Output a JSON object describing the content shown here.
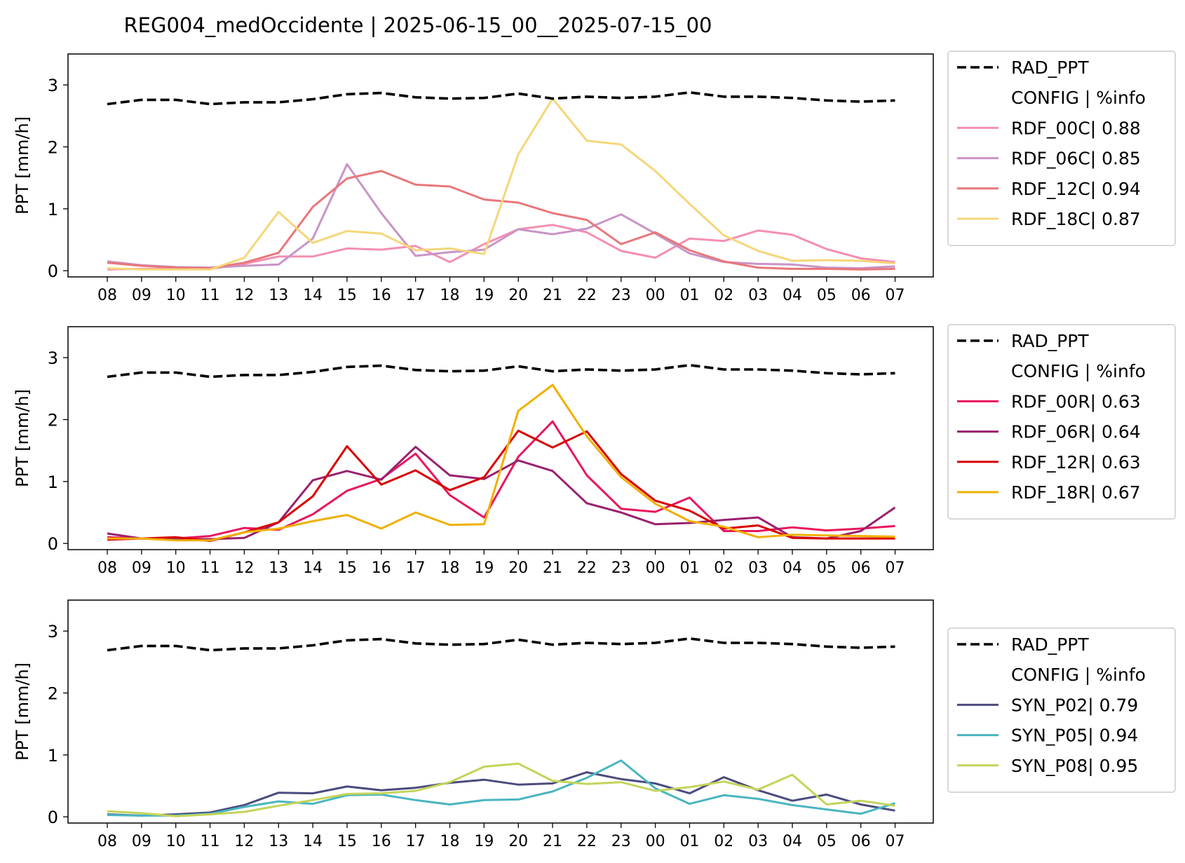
{
  "title": "REG004_medOccidente | 2025-06-15_00__2025-07-15_00",
  "chart_data": [
    {
      "type": "line",
      "ylabel": "PPT [mm/h]",
      "ylim": [
        -0.1,
        3.5
      ],
      "yticks": [
        0,
        1,
        2,
        3
      ],
      "categories": [
        "08",
        "09",
        "10",
        "11",
        "12",
        "13",
        "14",
        "15",
        "16",
        "17",
        "18",
        "19",
        "20",
        "21",
        "22",
        "23",
        "00",
        "01",
        "02",
        "03",
        "04",
        "05",
        "06",
        "07"
      ],
      "legend": {
        "placement": "outside-right",
        "header": "CONFIG  | %info"
      },
      "series": [
        {
          "name": "RAD_PPT",
          "color": "#000000",
          "dashed": true,
          "values": [
            2.69,
            2.76,
            2.76,
            2.69,
            2.72,
            2.72,
            2.77,
            2.85,
            2.87,
            2.8,
            2.78,
            2.79,
            2.86,
            2.78,
            2.81,
            2.79,
            2.81,
            2.88,
            2.81,
            2.81,
            2.79,
            2.75,
            2.73,
            2.75
          ]
        },
        {
          "name": "RDF_00C| 0.88",
          "color": "#f48fb1",
          "values": [
            0.02,
            0.03,
            0.03,
            0.03,
            0.11,
            0.23,
            0.23,
            0.36,
            0.34,
            0.4,
            0.14,
            0.43,
            0.67,
            0.74,
            0.62,
            0.32,
            0.21,
            0.52,
            0.48,
            0.65,
            0.58,
            0.35,
            0.2,
            0.14
          ]
        },
        {
          "name": "RDF_06C| 0.85",
          "color": "#c994c7",
          "values": [
            0.15,
            0.09,
            0.06,
            0.05,
            0.08,
            0.1,
            0.52,
            1.72,
            0.93,
            0.24,
            0.3,
            0.34,
            0.67,
            0.59,
            0.68,
            0.91,
            0.6,
            0.28,
            0.14,
            0.11,
            0.1,
            0.05,
            0.04,
            0.07
          ]
        },
        {
          "name": "RDF_12C| 0.94",
          "color": "#e8777a",
          "values": [
            0.13,
            0.08,
            0.05,
            0.04,
            0.13,
            0.29,
            1.03,
            1.49,
            1.61,
            1.39,
            1.36,
            1.15,
            1.1,
            0.93,
            0.82,
            0.43,
            0.62,
            0.33,
            0.15,
            0.05,
            0.03,
            0.03,
            0.02,
            0.03
          ]
        },
        {
          "name": "RDF_18C| 0.87",
          "color": "#f5d67a",
          "values": [
            0.04,
            0.02,
            0.02,
            0.02,
            0.21,
            0.95,
            0.45,
            0.64,
            0.6,
            0.33,
            0.36,
            0.27,
            1.88,
            2.78,
            2.1,
            2.04,
            1.61,
            1.08,
            0.57,
            0.32,
            0.16,
            0.17,
            0.16,
            0.12
          ]
        }
      ]
    },
    {
      "type": "line",
      "ylabel": "PPT [mm/h]",
      "ylim": [
        -0.1,
        3.5
      ],
      "yticks": [
        0,
        1,
        2,
        3
      ],
      "categories": [
        "08",
        "09",
        "10",
        "11",
        "12",
        "13",
        "14",
        "15",
        "16",
        "17",
        "18",
        "19",
        "20",
        "21",
        "22",
        "23",
        "00",
        "01",
        "02",
        "03",
        "04",
        "05",
        "06",
        "07"
      ],
      "legend": {
        "placement": "outside-right",
        "header": "CONFIG  | %info"
      },
      "series": [
        {
          "name": "RAD_PPT",
          "color": "#000000",
          "dashed": true,
          "values": [
            2.69,
            2.76,
            2.76,
            2.69,
            2.72,
            2.72,
            2.77,
            2.85,
            2.87,
            2.8,
            2.78,
            2.79,
            2.86,
            2.78,
            2.81,
            2.79,
            2.81,
            2.88,
            2.81,
            2.81,
            2.79,
            2.75,
            2.73,
            2.75
          ]
        },
        {
          "name": "RDF_00R| 0.63",
          "color": "#e8175d",
          "values": [
            0.1,
            0.08,
            0.08,
            0.12,
            0.25,
            0.22,
            0.47,
            0.85,
            1.04,
            1.45,
            0.78,
            0.42,
            1.4,
            1.97,
            1.1,
            0.56,
            0.51,
            0.74,
            0.2,
            0.2,
            0.26,
            0.21,
            0.24,
            0.28
          ]
        },
        {
          "name": "RDF_06R| 0.64",
          "color": "#99206e",
          "values": [
            0.16,
            0.08,
            0.07,
            0.07,
            0.09,
            0.34,
            1.02,
            1.17,
            1.03,
            1.56,
            1.1,
            1.04,
            1.34,
            1.17,
            0.65,
            0.5,
            0.31,
            0.33,
            0.38,
            0.42,
            0.1,
            0.08,
            0.2,
            0.58
          ]
        },
        {
          "name": "RDF_12R| 0.63",
          "color": "#d90000",
          "values": [
            0.06,
            0.08,
            0.1,
            0.04,
            0.18,
            0.34,
            0.76,
            1.57,
            0.95,
            1.18,
            0.86,
            1.07,
            1.82,
            1.55,
            1.81,
            1.12,
            0.69,
            0.53,
            0.24,
            0.29,
            0.09,
            0.08,
            0.08,
            0.08
          ]
        },
        {
          "name": "RDF_18R| 0.67",
          "color": "#f0b000",
          "values": [
            0.08,
            0.08,
            0.05,
            0.05,
            0.18,
            0.24,
            0.36,
            0.46,
            0.24,
            0.5,
            0.3,
            0.31,
            2.14,
            2.56,
            1.73,
            1.07,
            0.64,
            0.36,
            0.27,
            0.1,
            0.14,
            0.13,
            0.12,
            0.11
          ]
        }
      ]
    },
    {
      "type": "line",
      "ylabel": "PPT [mm/h]",
      "ylim": [
        -0.1,
        3.5
      ],
      "yticks": [
        0,
        1,
        2,
        3
      ],
      "categories": [
        "08",
        "09",
        "10",
        "11",
        "12",
        "13",
        "14",
        "15",
        "16",
        "17",
        "18",
        "19",
        "20",
        "21",
        "22",
        "23",
        "00",
        "01",
        "02",
        "03",
        "04",
        "05",
        "06",
        "07"
      ],
      "legend": {
        "placement": "outside-right",
        "header": "CONFIG  | %info"
      },
      "series": [
        {
          "name": "RAD_PPT",
          "color": "#000000",
          "dashed": true,
          "values": [
            2.69,
            2.76,
            2.76,
            2.69,
            2.72,
            2.72,
            2.77,
            2.85,
            2.87,
            2.8,
            2.78,
            2.79,
            2.86,
            2.78,
            2.81,
            2.79,
            2.81,
            2.88,
            2.81,
            2.81,
            2.79,
            2.75,
            2.73,
            2.75
          ]
        },
        {
          "name": "SYN_P02| 0.79",
          "color": "#4b4b7e",
          "values": [
            0.04,
            0.02,
            0.04,
            0.07,
            0.19,
            0.39,
            0.38,
            0.49,
            0.43,
            0.47,
            0.55,
            0.6,
            0.52,
            0.54,
            0.72,
            0.61,
            0.54,
            0.38,
            0.64,
            0.43,
            0.26,
            0.36,
            0.2,
            0.1
          ]
        },
        {
          "name": "SYN_P05| 0.94",
          "color": "#4ab5c0",
          "values": [
            0.03,
            0.02,
            0.02,
            0.05,
            0.16,
            0.25,
            0.21,
            0.35,
            0.36,
            0.27,
            0.2,
            0.27,
            0.28,
            0.41,
            0.63,
            0.91,
            0.46,
            0.21,
            0.35,
            0.29,
            0.19,
            0.12,
            0.05,
            0.22
          ]
        },
        {
          "name": "SYN_P08| 0.95",
          "color": "#c4d45a",
          "values": [
            0.09,
            0.06,
            0.01,
            0.04,
            0.08,
            0.18,
            0.27,
            0.37,
            0.38,
            0.42,
            0.56,
            0.81,
            0.86,
            0.58,
            0.53,
            0.56,
            0.42,
            0.48,
            0.57,
            0.44,
            0.68,
            0.2,
            0.26,
            0.18
          ]
        }
      ]
    }
  ]
}
